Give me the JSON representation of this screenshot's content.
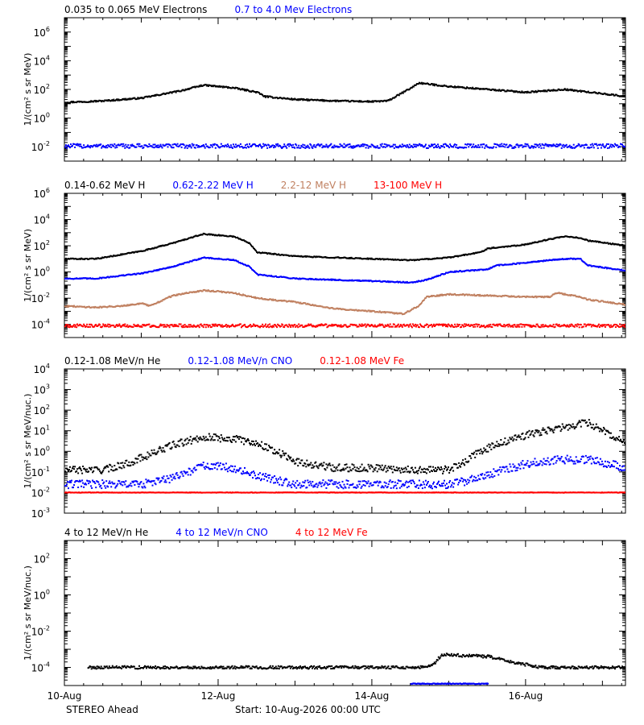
{
  "figure": {
    "footer_left": "STEREO Ahead",
    "footer_center": "Start: 10-Aug-2026 00:00 UTC"
  },
  "chart_data": [
    {
      "type": "scatter",
      "ylabel": "1/(cm² s sr MeV)",
      "y_log": true,
      "ylim_exp": [
        -3,
        7
      ],
      "ytick_exps": [
        -2,
        0,
        2,
        4,
        6
      ],
      "xlim_days": [
        0,
        7.3
      ],
      "x_unit": "days since 10-Aug-2026 00:00 UTC",
      "xtick_labels": [
        "10-Aug",
        "12-Aug",
        "14-Aug",
        "16-Aug"
      ],
      "legend": [
        {
          "label": "0.035 to 0.065 MeV Electrons",
          "color": "#000000"
        },
        {
          "label": "0.7 to 4.0 Mev Electrons",
          "color": "#0000ff"
        }
      ],
      "series": [
        {
          "name": "0.035 to 0.065 MeV Electrons",
          "color": "#000000",
          "x": [
            0,
            0.5,
            1.0,
            1.5,
            1.8,
            2.2,
            2.5,
            2.6,
            3.0,
            3.5,
            4.0,
            4.2,
            4.3,
            4.5,
            4.6,
            5.0,
            5.5,
            6.0,
            6.5,
            7.0,
            7.3
          ],
          "y_exp": [
            1.1,
            1.2,
            1.4,
            1.9,
            2.3,
            2.1,
            1.8,
            1.5,
            1.3,
            1.2,
            1.15,
            1.2,
            1.5,
            2.1,
            2.45,
            2.2,
            2.0,
            1.8,
            2.0,
            1.7,
            1.5
          ],
          "scatter": 0.05,
          "drop_below": -9
        },
        {
          "name": "0.7 to 4.0 Mev Electrons",
          "color": "#0000ff",
          "x": [
            0,
            7.3
          ],
          "y_exp": [
            -1.95,
            -1.95
          ],
          "scatter": 0.15,
          "drop_below": -9
        }
      ]
    },
    {
      "type": "scatter",
      "ylabel": "1/(cm² s sr MeV)",
      "y_log": true,
      "ylim_exp": [
        -5,
        6
      ],
      "ytick_exps": [
        -4,
        -2,
        0,
        2,
        4,
        6
      ],
      "xlim_days": [
        0,
        7.3
      ],
      "xtick_labels": [
        "10-Aug",
        "12-Aug",
        "14-Aug",
        "16-Aug"
      ],
      "legend": [
        {
          "label": "0.14-0.62 MeV H",
          "color": "#000000"
        },
        {
          "label": "0.62-2.22 MeV H",
          "color": "#0000ff"
        },
        {
          "label": "2.2-12 MeV H",
          "color": "#c08060"
        },
        {
          "label": "13-100 MeV H",
          "color": "#ff0000"
        }
      ],
      "series": [
        {
          "name": "0.14-0.62 MeV H",
          "color": "#000000",
          "x": [
            0,
            0.4,
            0.7,
            1.0,
            1.4,
            1.8,
            2.2,
            2.4,
            2.5,
            3.0,
            3.5,
            4.0,
            4.5,
            5.0,
            5.4,
            5.5,
            6.0,
            6.3,
            6.5,
            6.7,
            6.8,
            7.3
          ],
          "y_exp": [
            1.0,
            1.0,
            1.3,
            1.6,
            2.2,
            2.9,
            2.7,
            2.2,
            1.5,
            1.2,
            1.1,
            1.0,
            0.9,
            1.1,
            1.5,
            1.8,
            2.1,
            2.5,
            2.7,
            2.6,
            2.4,
            2.0
          ],
          "scatter": 0.04,
          "drop_below": -9
        },
        {
          "name": "0.62-2.22 MeV H",
          "color": "#0000ff",
          "x": [
            0,
            0.4,
            0.7,
            1.0,
            1.4,
            1.8,
            2.2,
            2.4,
            2.5,
            3.0,
            3.5,
            4.0,
            4.5,
            4.7,
            5.0,
            5.5,
            5.6,
            6.0,
            6.3,
            6.5,
            6.7,
            6.8,
            7.3
          ],
          "y_exp": [
            -0.5,
            -0.5,
            -0.3,
            -0.1,
            0.4,
            1.1,
            0.9,
            0.4,
            -0.2,
            -0.5,
            -0.6,
            -0.7,
            -0.8,
            -0.6,
            0.0,
            0.2,
            0.5,
            0.7,
            0.9,
            1.0,
            1.0,
            0.5,
            0.1
          ],
          "scatter": 0.04,
          "drop_below": -9
        },
        {
          "name": "2.2-12 MeV H",
          "color": "#c08060",
          "x": [
            0,
            0.4,
            0.7,
            1.0,
            1.1,
            1.4,
            1.8,
            2.2,
            2.5,
            3.0,
            3.5,
            4.0,
            4.4,
            4.6,
            4.7,
            5.0,
            5.5,
            6.0,
            6.3,
            6.4,
            6.5,
            6.6,
            6.7,
            6.8,
            7.3
          ],
          "y_exp": [
            -2.6,
            -2.7,
            -2.6,
            -2.4,
            -2.6,
            -1.8,
            -1.4,
            -1.6,
            -2.0,
            -2.3,
            -2.8,
            -3.0,
            -3.2,
            -2.6,
            -1.9,
            -1.7,
            -1.8,
            -1.9,
            -1.9,
            -1.6,
            -1.7,
            -1.8,
            -1.9,
            -2.1,
            -2.5
          ],
          "scatter": 0.05,
          "drop_below": -9
        },
        {
          "name": "13-100 MeV H",
          "color": "#ff0000",
          "x": [
            0,
            7.3
          ],
          "y_exp": [
            -4.1,
            -4.1
          ],
          "scatter": 0.12,
          "drop_below": -9
        }
      ]
    },
    {
      "type": "scatter",
      "ylabel": "1/(cm² s sr MeV/nuc.)",
      "y_log": true,
      "ylim_exp": [
        -3,
        4
      ],
      "ytick_exps": [
        -3,
        -2,
        -1,
        0,
        1,
        2,
        3,
        4
      ],
      "xlim_days": [
        0,
        7.3
      ],
      "xtick_labels": [
        "10-Aug",
        "12-Aug",
        "14-Aug",
        "16-Aug"
      ],
      "legend": [
        {
          "label": "0.12-1.08 MeV/n He",
          "color": "#000000"
        },
        {
          "label": "0.12-1.08 MeV/n CNO",
          "color": "#0000ff"
        },
        {
          "label": "0.12-1.08 MeV Fe",
          "color": "#ff0000"
        }
      ],
      "series": [
        {
          "name": "0.12-1.08 MeV/n He",
          "color": "#000000",
          "x": [
            0,
            0.5,
            0.8,
            1.0,
            1.4,
            1.8,
            2.2,
            2.5,
            2.8,
            3.0,
            3.5,
            4.0,
            4.5,
            5.0,
            5.2,
            5.4,
            5.6,
            6.0,
            6.4,
            6.8,
            7.0,
            7.3
          ],
          "y_exp": [
            -0.9,
            -0.9,
            -0.6,
            -0.3,
            0.3,
            0.7,
            0.6,
            0.4,
            -0.1,
            -0.5,
            -0.8,
            -0.8,
            -0.9,
            -0.9,
            -0.5,
            0.0,
            0.3,
            0.8,
            1.1,
            1.4,
            1.0,
            0.4
          ],
          "scatter": 0.18,
          "drop_below": -9
        },
        {
          "name": "0.12-1.08 MeV/n CNO",
          "color": "#0000ff",
          "x": [
            0,
            1.0,
            1.4,
            1.8,
            2.2,
            2.5,
            3.0,
            4.0,
            5.0,
            5.4,
            5.6,
            6.0,
            6.4,
            6.8,
            7.3
          ],
          "y_exp": [
            -1.6,
            -1.6,
            -1.3,
            -0.7,
            -0.8,
            -1.2,
            -1.6,
            -1.6,
            -1.6,
            -1.3,
            -1.0,
            -0.6,
            -0.4,
            -0.4,
            -0.8
          ],
          "scatter": 0.2,
          "drop_below": -9
        },
        {
          "name": "0.12-1.08 MeV Fe",
          "color": "#ff0000",
          "x": [
            0,
            7.3
          ],
          "y_exp": [
            -2.0,
            -2.0
          ],
          "scatter": 0.01,
          "drop_below": -9
        }
      ]
    },
    {
      "type": "scatter",
      "ylabel": "1/(cm² s sr MeV/nuc.)",
      "y_log": true,
      "ylim_exp": [
        -5,
        3
      ],
      "ytick_exps": [
        -4,
        -2,
        0,
        2
      ],
      "xlim_days": [
        0,
        7.3
      ],
      "xtick_labels": [
        "10-Aug",
        "12-Aug",
        "14-Aug",
        "16-Aug"
      ],
      "legend": [
        {
          "label": "4 to 12 MeV/n He",
          "color": "#000000"
        },
        {
          "label": "4 to 12 MeV/n CNO",
          "color": "#0000ff"
        },
        {
          "label": "4 to 12 MeV Fe",
          "color": "#ff0000"
        }
      ],
      "series": [
        {
          "name": "4 to 12 MeV/n He",
          "color": "#000000",
          "x": [
            0.3,
            4.7,
            4.8,
            4.9,
            5.5,
            5.8,
            6.2,
            7.3
          ],
          "y_exp": [
            -4.0,
            -4.0,
            -3.8,
            -3.3,
            -3.4,
            -3.7,
            -4.0,
            -4.0
          ],
          "scatter": 0.08,
          "drop_below": -9
        },
        {
          "name": "4 to 12 MeV/n CNO",
          "color": "#0000ff",
          "x": [
            4.5,
            5.5
          ],
          "y_exp": [
            -4.9,
            -4.9
          ],
          "scatter": 0.02,
          "drop_below": -9
        }
      ]
    }
  ]
}
